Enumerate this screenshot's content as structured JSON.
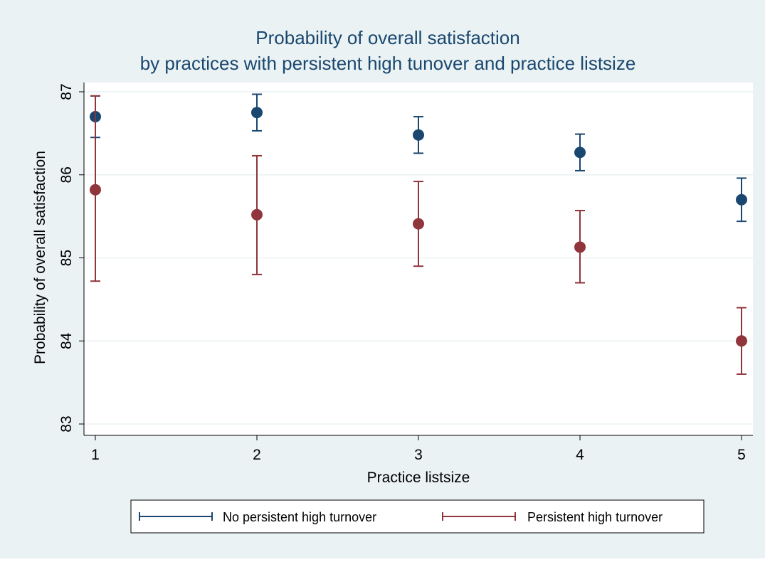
{
  "colors": {
    "outer_bg": "#eaf2f3",
    "plot_bg": "#ffffff",
    "grid": "#eaf2f3",
    "axis": "#000000",
    "title": "#1a476f",
    "text": "#000000",
    "series_1": "#1a476f",
    "series_2": "#90353b"
  },
  "chart_data": {
    "type": "scatter",
    "subtype": "error-bar",
    "title": "Probability of overall satisfaction",
    "subtitle": "by practices with persistent high tunover and practice listsize",
    "xlabel": "Practice listsize",
    "ylabel": "Probability of overall satisfaction",
    "x": [
      1,
      2,
      3,
      4,
      5
    ],
    "x_ticks": [
      "1",
      "2",
      "3",
      "4",
      "5"
    ],
    "y_ticks": [
      "83",
      "84",
      "85",
      "86",
      "87"
    ],
    "ylim": [
      82.85,
      87.15
    ],
    "xlim": [
      0.95,
      5.05
    ],
    "grid": true,
    "legend_position": "bottom",
    "series": [
      {
        "name": "No persistent high turnover",
        "color": "#1a476f",
        "values": [
          86.7,
          86.75,
          86.48,
          86.27,
          85.7
        ],
        "lower": [
          86.45,
          86.53,
          86.26,
          86.05,
          85.44
        ],
        "upper": [
          86.95,
          86.97,
          86.7,
          86.49,
          85.96
        ]
      },
      {
        "name": "Persistent high turnover",
        "color": "#90353b",
        "values": [
          85.82,
          85.52,
          85.41,
          85.13,
          84.0
        ],
        "lower": [
          84.72,
          84.8,
          84.9,
          84.7,
          83.6
        ],
        "upper": [
          86.95,
          86.23,
          85.92,
          85.57,
          84.4
        ]
      }
    ]
  }
}
